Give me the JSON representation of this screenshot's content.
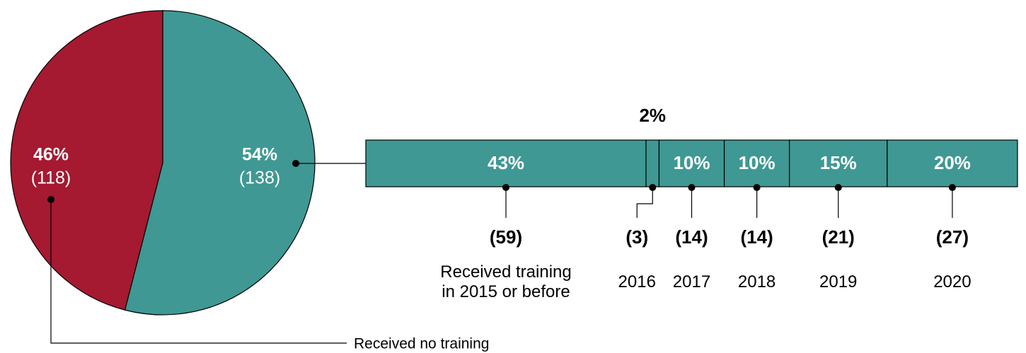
{
  "chart_data": [
    {
      "type": "pie",
      "categories": [
        "Received no training",
        null
      ],
      "values": [
        46,
        54
      ],
      "value_labels": [
        "46%",
        "54%"
      ],
      "counts": [
        118,
        138
      ],
      "count_labels": [
        "(118)",
        "(138)"
      ],
      "colors": [
        "#a51931",
        "#3f9893"
      ]
    },
    {
      "type": "stacked_bar",
      "categories": [
        "Received training in 2015 or before",
        "2016",
        "2017",
        "2018",
        "2019",
        "2020"
      ],
      "values": [
        43,
        2,
        10,
        10,
        15,
        20
      ],
      "value_labels": [
        "43%",
        "2%",
        "10%",
        "10%",
        "15%",
        "20%"
      ],
      "counts": [
        59,
        3,
        14,
        14,
        21,
        27
      ],
      "count_labels": [
        "(59)",
        "(3)",
        "(14)",
        "(14)",
        "(21)",
        "(27)"
      ],
      "color": "#3f9893"
    }
  ]
}
